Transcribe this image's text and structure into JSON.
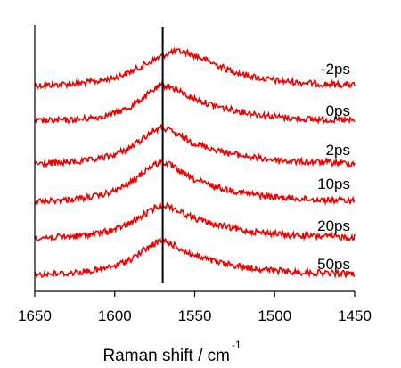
{
  "chart_data": {
    "type": "line",
    "xlabel": "Raman shift / cm",
    "xlabel_superscript": "-1",
    "xlim": [
      1650,
      1450
    ],
    "x_reversed": true,
    "xticks": [
      1650,
      1600,
      1550,
      1500,
      1450
    ],
    "y_axis": "no ticks or labels; spectra stacked with vertical offsets",
    "grid": false,
    "line_color": "#ee0000",
    "reference_line": {
      "x": 1570,
      "color": "#000000"
    },
    "x": [
      1650,
      1640,
      1630,
      1620,
      1610,
      1600,
      1590,
      1580,
      1575,
      1570,
      1565,
      1560,
      1555,
      1550,
      1540,
      1530,
      1520,
      1510,
      1500,
      1490,
      1480,
      1470,
      1460,
      1450
    ],
    "series": [
      {
        "name": "-2ps",
        "values": [
          0.0,
          0.01,
          0.03,
          0.05,
          0.09,
          0.15,
          0.27,
          0.42,
          0.5,
          0.58,
          0.64,
          0.66,
          0.64,
          0.58,
          0.45,
          0.32,
          0.22,
          0.15,
          0.1,
          0.07,
          0.05,
          0.03,
          0.02,
          0.01
        ]
      },
      {
        "name": "0ps",
        "values": [
          0.0,
          0.01,
          0.02,
          0.04,
          0.08,
          0.15,
          0.28,
          0.5,
          0.62,
          0.7,
          0.66,
          0.58,
          0.5,
          0.43,
          0.32,
          0.24,
          0.18,
          0.13,
          0.09,
          0.06,
          0.04,
          0.03,
          0.02,
          0.01
        ]
      },
      {
        "name": "2ps",
        "values": [
          0.0,
          0.01,
          0.03,
          0.05,
          0.1,
          0.18,
          0.32,
          0.55,
          0.66,
          0.7,
          0.64,
          0.55,
          0.47,
          0.4,
          0.3,
          0.22,
          0.16,
          0.11,
          0.08,
          0.05,
          0.04,
          0.03,
          0.02,
          0.01
        ]
      },
      {
        "name": "10ps",
        "values": [
          0.0,
          0.01,
          0.03,
          0.06,
          0.11,
          0.2,
          0.36,
          0.62,
          0.72,
          0.76,
          0.7,
          0.6,
          0.5,
          0.42,
          0.31,
          0.23,
          0.17,
          0.12,
          0.08,
          0.06,
          0.04,
          0.03,
          0.02,
          0.01
        ]
      },
      {
        "name": "20ps",
        "values": [
          0.0,
          0.01,
          0.02,
          0.05,
          0.09,
          0.16,
          0.29,
          0.48,
          0.58,
          0.64,
          0.6,
          0.52,
          0.45,
          0.38,
          0.28,
          0.21,
          0.15,
          0.11,
          0.08,
          0.05,
          0.04,
          0.03,
          0.02,
          0.01
        ]
      },
      {
        "name": "50ps",
        "values": [
          0.0,
          0.01,
          0.02,
          0.05,
          0.09,
          0.16,
          0.3,
          0.5,
          0.6,
          0.66,
          0.6,
          0.51,
          0.43,
          0.37,
          0.27,
          0.2,
          0.15,
          0.11,
          0.08,
          0.05,
          0.04,
          0.03,
          0.02,
          0.01
        ]
      }
    ]
  }
}
